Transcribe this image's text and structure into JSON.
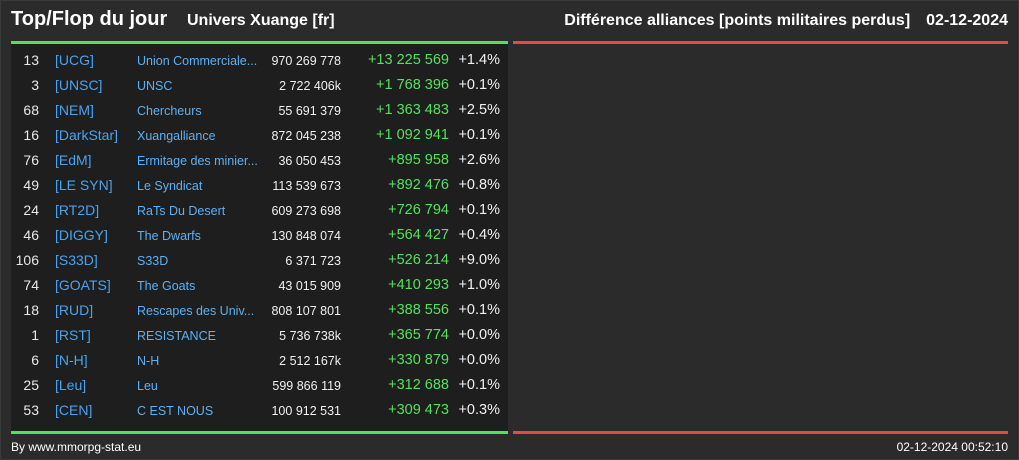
{
  "header": {
    "title": "Top/Flop du jour",
    "universe": "Univers Xuange [fr]",
    "section": "Différence alliances [points militaires perdus]",
    "date": "02-12-2024"
  },
  "colors": {
    "background": "#2b2b2b",
    "top_accent": "#4fe35c",
    "flop_accent": "#e54b44",
    "tag_color": "#4aa3f0",
    "positive_diff": "#55e060"
  },
  "top_list": [
    {
      "rank": "13",
      "tag": "[UCG]",
      "name": "Union Commerciale...",
      "points": "970 269 778",
      "diff": "+13 225 569",
      "pct": "+1.4%"
    },
    {
      "rank": "3",
      "tag": "[UNSC]",
      "name": "UNSC",
      "points": "2 722 406k",
      "diff": "+1 768 396",
      "pct": "+0.1%"
    },
    {
      "rank": "68",
      "tag": "[NEM]",
      "name": "Chercheurs",
      "points": "55 691 379",
      "diff": "+1 363 483",
      "pct": "+2.5%"
    },
    {
      "rank": "16",
      "tag": "[DarkStar]",
      "name": "Xuangalliance",
      "points": "872 045 238",
      "diff": "+1 092 941",
      "pct": "+0.1%"
    },
    {
      "rank": "76",
      "tag": "[EdM]",
      "name": "Ermitage des minier...",
      "points": "36 050 453",
      "diff": "+895 958",
      "pct": "+2.6%"
    },
    {
      "rank": "49",
      "tag": "[LE SYN]",
      "name": "Le Syndicat",
      "points": "113 539 673",
      "diff": "+892 476",
      "pct": "+0.8%"
    },
    {
      "rank": "24",
      "tag": "[RT2D]",
      "name": "RaTs Du Desert",
      "points": "609 273 698",
      "diff": "+726 794",
      "pct": "+0.1%"
    },
    {
      "rank": "46",
      "tag": "[DIGGY]",
      "name": "The Dwarfs",
      "points": "130 848 074",
      "diff": "+564 427",
      "pct": "+0.4%"
    },
    {
      "rank": "106",
      "tag": "[S33D]",
      "name": "S33D",
      "points": "6 371 723",
      "diff": "+526 214",
      "pct": "+9.0%"
    },
    {
      "rank": "74",
      "tag": "[GOATS]",
      "name": "The Goats",
      "points": "43 015 909",
      "diff": "+410 293",
      "pct": "+1.0%"
    },
    {
      "rank": "18",
      "tag": "[RUD]",
      "name": "Rescapes des Univ...",
      "points": "808 107 801",
      "diff": "+388 556",
      "pct": "+0.1%"
    },
    {
      "rank": "1",
      "tag": "[RST]",
      "name": "RESISTANCE",
      "points": "5 736 738k",
      "diff": "+365 774",
      "pct": "+0.0%"
    },
    {
      "rank": "6",
      "tag": "[N-H]",
      "name": "N-H",
      "points": "2 512 167k",
      "diff": "+330 879",
      "pct": "+0.0%"
    },
    {
      "rank": "25",
      "tag": "[Leu]",
      "name": "Leu",
      "points": "599 866 119",
      "diff": "+312 688",
      "pct": "+0.1%"
    },
    {
      "rank": "53",
      "tag": "[CEN]",
      "name": "C EST NOUS",
      "points": "100 912 531",
      "diff": "+309 473",
      "pct": "+0.3%"
    }
  ],
  "flop_list": [],
  "footer": {
    "credit": "By www.mmorpg-stat.eu",
    "timestamp": "02-12-2024 00:52:10"
  }
}
